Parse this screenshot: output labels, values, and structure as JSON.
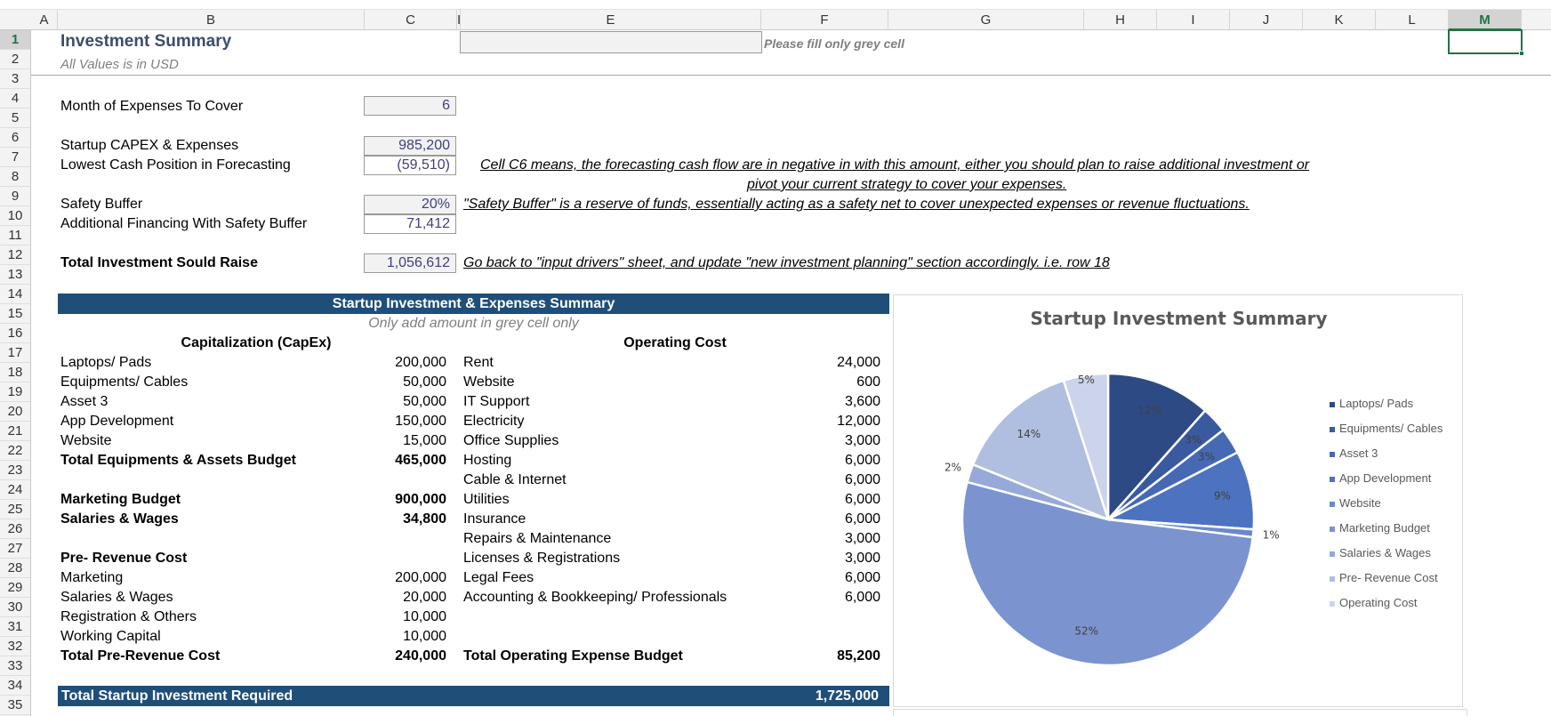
{
  "columns": [
    "A",
    "B",
    "C",
    "I",
    "E",
    "F",
    "G",
    "H",
    "I",
    "J",
    "K",
    "L",
    "M"
  ],
  "selected_column": "M",
  "rows": [
    "1",
    "2",
    "3",
    "4",
    "5",
    "6",
    "7",
    "8",
    "9",
    "10",
    "11",
    "12",
    "13",
    "14",
    "15",
    "16",
    "17",
    "18",
    "19",
    "20",
    "21",
    "22",
    "23",
    "24",
    "25",
    "26",
    "27",
    "28",
    "29",
    "30",
    "31",
    "32",
    "33",
    "34",
    "35"
  ],
  "header": {
    "title": "Investment Summary",
    "subtitle": "All Values is in USD",
    "fill_note": "Please fill only grey cell"
  },
  "inputs": {
    "months_label": "Month of Expenses To Cover",
    "months_value": "6",
    "capex_label": "Startup CAPEX & Expenses",
    "capex_value": "985,200",
    "lowest_label": "Lowest Cash Position in Forecasting",
    "lowest_value": "(59,510)",
    "lowest_note_1": "Cell C6 means, the forecasting cash flow are in negative in with this amount, either you should plan to raise additional investment or",
    "lowest_note_2": "pivot your current strategy to cover your expenses.",
    "buffer_label": "Safety Buffer",
    "buffer_value": "20%",
    "buffer_note": "\"Safety Buffer\" is a reserve of funds, essentially acting as a safety net to cover unexpected expenses or revenue fluctuations.",
    "additional_label": "Additional Financing With Safety Buffer",
    "additional_value": "71,412",
    "total_label": "Total Investment Sould Raise",
    "total_value": "1,056,612",
    "total_note": "Go back to \"input drivers\" sheet, and update \"new investment planning\" section accordingly. i.e. row 18"
  },
  "summary": {
    "band_title": "Startup Investment & Expenses Summary",
    "grey_note": "Only add amount in grey cell only",
    "capex_header": "Capitalization (CapEx)",
    "opex_header": "Operating Cost",
    "capex_items": [
      {
        "label": "Laptops/ Pads",
        "value": "200,000",
        "bold": false
      },
      {
        "label": "Equipments/ Cables",
        "value": "50,000",
        "bold": false
      },
      {
        "label": "Asset 3",
        "value": "50,000",
        "bold": false
      },
      {
        "label": "App Development",
        "value": "150,000",
        "bold": false
      },
      {
        "label": "Website",
        "value": "15,000",
        "bold": false
      },
      {
        "label": "Total Equipments & Assets Budget",
        "value": "465,000",
        "bold": true
      },
      {
        "label": "",
        "value": "",
        "bold": false
      },
      {
        "label": "Marketing Budget",
        "value": "900,000",
        "bold": true
      },
      {
        "label": "Salaries & Wages",
        "value": "34,800",
        "bold": true
      },
      {
        "label": "",
        "value": "",
        "bold": false
      },
      {
        "label": "Pre- Revenue Cost",
        "value": "",
        "bold": true
      },
      {
        "label": "Marketing",
        "value": "200,000",
        "bold": false
      },
      {
        "label": "Salaries & Wages",
        "value": "20,000",
        "bold": false
      },
      {
        "label": "Registration & Others",
        "value": "10,000",
        "bold": false
      },
      {
        "label": "Working Capital",
        "value": "10,000",
        "bold": false
      },
      {
        "label": "Total Pre-Revenue Cost",
        "value": "240,000",
        "bold": true
      }
    ],
    "opex_items": [
      {
        "label": "Rent",
        "value": "24,000",
        "bold": false
      },
      {
        "label": "Website",
        "value": "600",
        "bold": false
      },
      {
        "label": "IT Support",
        "value": "3,600",
        "bold": false
      },
      {
        "label": "Electricity",
        "value": "12,000",
        "bold": false
      },
      {
        "label": "Office Supplies",
        "value": "3,000",
        "bold": false
      },
      {
        "label": "Hosting",
        "value": "6,000",
        "bold": false
      },
      {
        "label": "Cable & Internet",
        "value": "6,000",
        "bold": false
      },
      {
        "label": "Utilities",
        "value": "6,000",
        "bold": false
      },
      {
        "label": "Insurance",
        "value": "6,000",
        "bold": false
      },
      {
        "label": "Repairs & Maintenance",
        "value": "3,000",
        "bold": false
      },
      {
        "label": "Licenses & Registrations",
        "value": "3,000",
        "bold": false
      },
      {
        "label": "Legal Fees",
        "value": "6,000",
        "bold": false
      },
      {
        "label": "Accounting & Bookkeeping/ Professionals",
        "value": "6,000",
        "bold": false
      },
      {
        "label": "",
        "value": "",
        "bold": false
      },
      {
        "label": "",
        "value": "",
        "bold": false
      },
      {
        "label": "Total Operating Expense Budget",
        "value": "85,200",
        "bold": true
      }
    ],
    "grand_total_label": "Total Startup Investment Required",
    "grand_total_value": "1,725,000"
  },
  "chart_data": {
    "type": "pie",
    "title": "Startup Investment Summary",
    "categories": [
      "Laptops/ Pads",
      "Equipments/ Cables",
      "Asset 3",
      "App Development",
      "Website",
      "Marketing Budget",
      "Salaries & Wages",
      "Pre- Revenue Cost",
      "Operating Cost"
    ],
    "values": [
      200000,
      50000,
      50000,
      150000,
      15000,
      900000,
      34800,
      240000,
      85200
    ],
    "data_labels": [
      "12%",
      "3%",
      "3%",
      "9%",
      "1%",
      "52%",
      "2%",
      "14%",
      "5%"
    ],
    "colors": [
      "#2e4a85",
      "#3a5aa0",
      "#4669b4",
      "#4d73c0",
      "#6a89cc",
      "#7b94d0",
      "#97a9d8",
      "#b0bee0",
      "#ccd4eb"
    ],
    "legend_position": "right"
  }
}
